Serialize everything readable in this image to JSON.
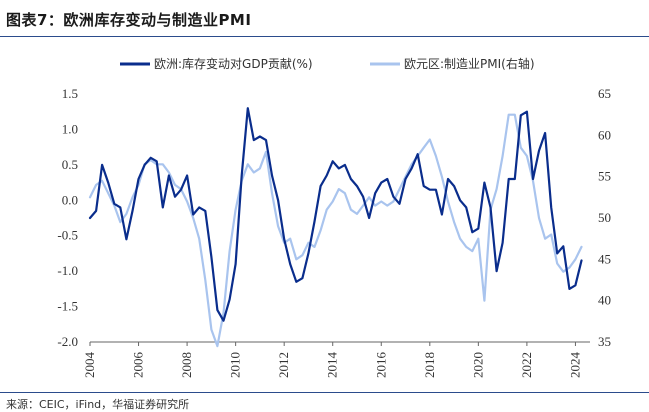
{
  "header": {
    "title": "图表7：欧洲库存变动与制造业PMI"
  },
  "footer": {
    "source": "来源：CEIC，iFind，华福证券研究所"
  },
  "chart_data": {
    "type": "line",
    "title": "图表7：欧洲库存变动与制造业PMI",
    "x_ticks": [
      "2004",
      "2006",
      "2008",
      "2010",
      "2012",
      "2014",
      "2016",
      "2018",
      "2020",
      "2022",
      "2024"
    ],
    "y_left": {
      "min": -2.0,
      "max": 1.5,
      "ticks": [
        "-2.0",
        "-1.5",
        "-1.0",
        "-0.5",
        "0.0",
        "0.5",
        "1.0",
        "1.5"
      ]
    },
    "y_right": {
      "min": 35,
      "max": 65,
      "ticks": [
        "35",
        "40",
        "45",
        "50",
        "55",
        "60",
        "65"
      ]
    },
    "legend_position": "top",
    "grid": false,
    "colors": {
      "inventory": "#0a2d8c",
      "pmi": "#a9c4ee"
    },
    "series": [
      {
        "name": "欧洲:库存变动对GDP贡献(%)",
        "axis": "left",
        "points": [
          [
            2004.0,
            -0.25
          ],
          [
            2004.25,
            -0.15
          ],
          [
            2004.5,
            0.5
          ],
          [
            2004.75,
            0.25
          ],
          [
            2005.0,
            -0.05
          ],
          [
            2005.25,
            -0.1
          ],
          [
            2005.5,
            -0.55
          ],
          [
            2005.75,
            -0.15
          ],
          [
            2006.0,
            0.3
          ],
          [
            2006.25,
            0.5
          ],
          [
            2006.5,
            0.6
          ],
          [
            2006.75,
            0.55
          ],
          [
            2007.0,
            -0.1
          ],
          [
            2007.25,
            0.35
          ],
          [
            2007.5,
            0.05
          ],
          [
            2007.75,
            0.15
          ],
          [
            2008.0,
            0.35
          ],
          [
            2008.25,
            -0.2
          ],
          [
            2008.5,
            -0.1
          ],
          [
            2008.75,
            -0.15
          ],
          [
            2009.0,
            -0.8
          ],
          [
            2009.25,
            -1.55
          ],
          [
            2009.5,
            -1.7
          ],
          [
            2009.75,
            -1.4
          ],
          [
            2010.0,
            -0.9
          ],
          [
            2010.25,
            0.35
          ],
          [
            2010.5,
            1.3
          ],
          [
            2010.75,
            0.85
          ],
          [
            2011.0,
            0.9
          ],
          [
            2011.25,
            0.85
          ],
          [
            2011.5,
            0.35
          ],
          [
            2011.75,
            0.0
          ],
          [
            2012.0,
            -0.55
          ],
          [
            2012.25,
            -0.9
          ],
          [
            2012.5,
            -1.15
          ],
          [
            2012.75,
            -1.1
          ],
          [
            2013.0,
            -0.75
          ],
          [
            2013.25,
            -0.3
          ],
          [
            2013.5,
            0.2
          ],
          [
            2013.75,
            0.35
          ],
          [
            2014.0,
            0.55
          ],
          [
            2014.25,
            0.45
          ],
          [
            2014.5,
            0.5
          ],
          [
            2014.75,
            0.3
          ],
          [
            2015.0,
            0.2
          ],
          [
            2015.25,
            0.05
          ],
          [
            2015.5,
            -0.25
          ],
          [
            2015.75,
            0.1
          ],
          [
            2016.0,
            0.25
          ],
          [
            2016.25,
            0.3
          ],
          [
            2016.5,
            0.05
          ],
          [
            2016.75,
            -0.05
          ],
          [
            2017.0,
            0.3
          ],
          [
            2017.25,
            0.45
          ],
          [
            2017.5,
            0.65
          ],
          [
            2017.75,
            0.2
          ],
          [
            2018.0,
            0.15
          ],
          [
            2018.25,
            0.15
          ],
          [
            2018.5,
            -0.2
          ],
          [
            2018.75,
            0.3
          ],
          [
            2019.0,
            0.2
          ],
          [
            2019.25,
            0.0
          ],
          [
            2019.5,
            -0.1
          ],
          [
            2019.75,
            -0.45
          ],
          [
            2020.0,
            -0.4
          ],
          [
            2020.25,
            0.25
          ],
          [
            2020.5,
            -0.1
          ],
          [
            2020.75,
            -1.0
          ],
          [
            2021.0,
            -0.6
          ],
          [
            2021.25,
            0.3
          ],
          [
            2021.5,
            0.3
          ],
          [
            2021.75,
            1.2
          ],
          [
            2022.0,
            1.25
          ],
          [
            2022.25,
            0.3
          ],
          [
            2022.5,
            0.7
          ],
          [
            2022.75,
            0.95
          ],
          [
            2023.0,
            -0.1
          ],
          [
            2023.25,
            -0.75
          ],
          [
            2023.5,
            -0.65
          ],
          [
            2023.75,
            -1.25
          ],
          [
            2024.0,
            -1.2
          ],
          [
            2024.25,
            -0.85
          ]
        ]
      },
      {
        "name": "欧元区:制造业PMI(右轴)",
        "axis": "right",
        "points": [
          [
            2004.0,
            52.5
          ],
          [
            2004.25,
            54.0
          ],
          [
            2004.5,
            54.5
          ],
          [
            2004.75,
            53.0
          ],
          [
            2005.0,
            51.5
          ],
          [
            2005.25,
            49.5
          ],
          [
            2005.5,
            50.5
          ],
          [
            2005.75,
            52.5
          ],
          [
            2006.0,
            54.0
          ],
          [
            2006.25,
            56.5
          ],
          [
            2006.5,
            57.0
          ],
          [
            2006.75,
            56.5
          ],
          [
            2007.0,
            56.5
          ],
          [
            2007.25,
            55.5
          ],
          [
            2007.5,
            54.0
          ],
          [
            2007.75,
            53.5
          ],
          [
            2008.0,
            52.0
          ],
          [
            2008.25,
            50.0
          ],
          [
            2008.5,
            47.5
          ],
          [
            2008.75,
            42.5
          ],
          [
            2009.0,
            36.5
          ],
          [
            2009.25,
            34.5
          ],
          [
            2009.5,
            38.5
          ],
          [
            2009.75,
            46.0
          ],
          [
            2010.0,
            51.0
          ],
          [
            2010.25,
            54.5
          ],
          [
            2010.5,
            56.5
          ],
          [
            2010.75,
            55.5
          ],
          [
            2011.0,
            56.0
          ],
          [
            2011.25,
            58.0
          ],
          [
            2011.5,
            53.0
          ],
          [
            2011.75,
            49.0
          ],
          [
            2012.0,
            47.0
          ],
          [
            2012.25,
            47.5
          ],
          [
            2012.5,
            45.0
          ],
          [
            2012.75,
            45.5
          ],
          [
            2013.0,
            47.0
          ],
          [
            2013.25,
            46.5
          ],
          [
            2013.5,
            48.5
          ],
          [
            2013.75,
            51.0
          ],
          [
            2014.0,
            52.0
          ],
          [
            2014.25,
            53.5
          ],
          [
            2014.5,
            53.0
          ],
          [
            2014.75,
            51.0
          ],
          [
            2015.0,
            50.5
          ],
          [
            2015.25,
            51.5
          ],
          [
            2015.5,
            52.5
          ],
          [
            2015.75,
            51.5
          ],
          [
            2016.0,
            52.0
          ],
          [
            2016.25,
            51.5
          ],
          [
            2016.5,
            52.0
          ],
          [
            2016.75,
            53.5
          ],
          [
            2017.0,
            55.0
          ],
          [
            2017.25,
            56.5
          ],
          [
            2017.5,
            57.5
          ],
          [
            2017.75,
            58.5
          ],
          [
            2018.0,
            59.5
          ],
          [
            2018.25,
            57.5
          ],
          [
            2018.5,
            55.0
          ],
          [
            2018.75,
            52.0
          ],
          [
            2019.0,
            49.5
          ],
          [
            2019.25,
            47.5
          ],
          [
            2019.5,
            46.5
          ],
          [
            2019.75,
            46.0
          ],
          [
            2020.0,
            47.5
          ],
          [
            2020.25,
            40.0
          ],
          [
            2020.5,
            51.0
          ],
          [
            2020.75,
            53.5
          ],
          [
            2021.0,
            57.5
          ],
          [
            2021.25,
            62.5
          ],
          [
            2021.5,
            62.5
          ],
          [
            2021.75,
            58.5
          ],
          [
            2022.0,
            57.5
          ],
          [
            2022.25,
            54.5
          ],
          [
            2022.5,
            50.0
          ],
          [
            2022.75,
            47.5
          ],
          [
            2023.0,
            48.0
          ],
          [
            2023.25,
            44.5
          ],
          [
            2023.5,
            43.5
          ],
          [
            2023.75,
            44.0
          ],
          [
            2024.0,
            45.0
          ],
          [
            2024.25,
            46.5
          ]
        ]
      }
    ]
  }
}
